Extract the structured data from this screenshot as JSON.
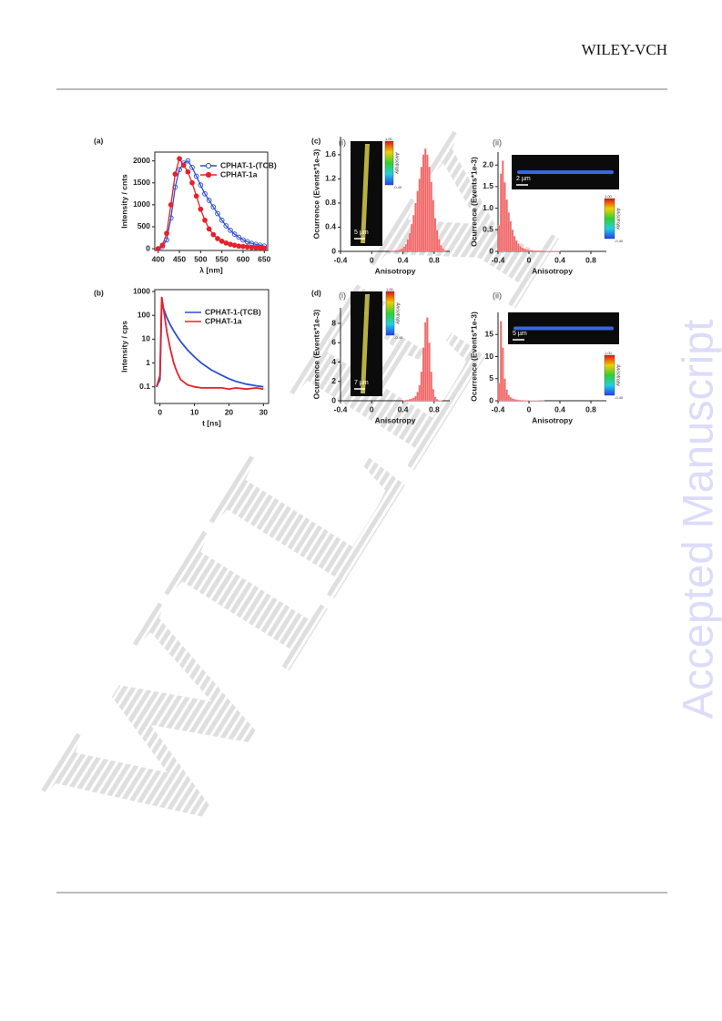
{
  "header": {
    "brand": "WILEY-VCH"
  },
  "watermark": {
    "side": "Accepted Manuscript",
    "diagonal": "WILEY"
  },
  "chart_data": [
    {
      "type": "line",
      "panel": "(a)",
      "xlabel": "λ [nm]",
      "ylabel": "Intensity / cnts",
      "x": [
        400,
        410,
        420,
        430,
        440,
        450,
        460,
        470,
        480,
        490,
        500,
        510,
        520,
        530,
        540,
        550,
        560,
        570,
        580,
        590,
        600,
        610,
        620,
        630,
        640,
        650
      ],
      "series": [
        {
          "name": "CPHAT-1-(TCB)",
          "color": "#2a4fd0",
          "marker": "open-circle",
          "values": [
            0,
            50,
            200,
            700,
            1400,
            1800,
            1950,
            2000,
            1850,
            1650,
            1450,
            1250,
            1100,
            950,
            800,
            650,
            520,
            420,
            330,
            260,
            200,
            160,
            120,
            100,
            80,
            60
          ]
        },
        {
          "name": "CPHAT-1a",
          "color": "#e8202a",
          "marker": "filled-circle",
          "values": [
            0,
            80,
            350,
            1000,
            1700,
            2050,
            1900,
            1750,
            1500,
            1200,
            900,
            650,
            450,
            320,
            230,
            170,
            130,
            100,
            80,
            60,
            50,
            40,
            30,
            25,
            20,
            15
          ]
        }
      ],
      "xlim": [
        392,
        658
      ],
      "xticks": [
        400,
        450,
        500,
        550,
        600,
        650
      ],
      "ylim": [
        -40,
        2200
      ],
      "yticks": [
        0,
        500,
        1000,
        1500,
        2000
      ],
      "legend": "upper right"
    },
    {
      "type": "line",
      "panel": "(b)",
      "xlabel": "t [ns]",
      "ylabel": "Intensity / cps",
      "log_y": true,
      "x": [
        -1,
        0,
        0.5,
        1,
        2,
        3,
        4,
        5,
        6,
        8,
        10,
        12,
        15,
        18,
        20,
        22,
        25,
        28,
        30
      ],
      "series": [
        {
          "name": "CPHAT-1-(TCB)",
          "color": "#2a4fd0",
          "values": [
            0.1,
            0.2,
            300,
            200,
            80,
            40,
            22,
            13,
            8,
            3.5,
            1.8,
            1,
            0.5,
            0.3,
            0.22,
            0.17,
            0.13,
            0.11,
            0.1
          ]
        },
        {
          "name": "CPHAT-1a",
          "color": "#e8202a",
          "values": [
            0.1,
            0.3,
            600,
            200,
            20,
            4,
            1,
            0.4,
            0.2,
            0.12,
            0.1,
            0.09,
            0.09,
            0.09,
            0.08,
            0.09,
            0.08,
            0.09,
            0.08
          ]
        }
      ],
      "xlim": [
        -1.5,
        31.5
      ],
      "xticks": [
        0,
        10,
        20,
        30
      ],
      "ylim": [
        0.02,
        1200
      ],
      "yticks": [
        0.1,
        1,
        10,
        100,
        1000
      ],
      "legend": "upper right"
    },
    {
      "type": "histogram",
      "panel": "(c)",
      "subpanel": "(i)",
      "color": "#f06a6a",
      "xlabel": "Anisotropy",
      "ylabel": "Ocurrence (Events*1e-3)",
      "bins": [
        0.2,
        0.225,
        0.25,
        0.275,
        0.3,
        0.325,
        0.35,
        0.375,
        0.4,
        0.425,
        0.45,
        0.475,
        0.5,
        0.525,
        0.55,
        0.575,
        0.6,
        0.625,
        0.65,
        0.675,
        0.7,
        0.725,
        0.75,
        0.775,
        0.8,
        0.825,
        0.85,
        0.875,
        0.9,
        0.925,
        0.95
      ],
      "counts": [
        0,
        0.01,
        0.01,
        0.01,
        0.02,
        0.02,
        0.03,
        0.05,
        0.08,
        0.12,
        0.2,
        0.3,
        0.45,
        0.6,
        0.8,
        1.0,
        1.2,
        1.4,
        1.6,
        1.7,
        1.6,
        1.4,
        1.15,
        0.85,
        0.55,
        0.35,
        0.2,
        0.1,
        0.05,
        0.02
      ],
      "xlim": [
        -0.4,
        1.0
      ],
      "xticks": [
        -0.4,
        0,
        0.4,
        0.8
      ],
      "ylim": [
        0,
        1.9
      ],
      "yticks": [
        0,
        0.4,
        0.8,
        1.2,
        1.6
      ],
      "inset": {
        "scale_bar": "5 µm",
        "colorbar_max": "1.00",
        "colorbar_min": "-0.40",
        "colorbar_label": "Anisotropy"
      }
    },
    {
      "type": "histogram",
      "subpanel": "(ii)",
      "color": "#f06a6a",
      "xlabel": "Anisotropy",
      "ylabel": "Ocurrence (Events*1e-3)",
      "bins": [
        -0.4,
        -0.375,
        -0.35,
        -0.325,
        -0.3,
        -0.275,
        -0.25,
        -0.225,
        -0.2,
        -0.175,
        -0.15,
        -0.125,
        -0.1,
        -0.075,
        -0.05,
        -0.025,
        0,
        0.025,
        0.05,
        0.075,
        0.1,
        0.125,
        0.15,
        0.175,
        0.2,
        0.225,
        0.25,
        0.275,
        0.3,
        0.325,
        0.35,
        0.375,
        0.4
      ],
      "counts": [
        0.6,
        1.8,
        2.1,
        1.6,
        1.2,
        0.9,
        0.7,
        0.5,
        0.35,
        0.25,
        0.18,
        0.12,
        0.09,
        0.07,
        0.05,
        0.04,
        0.03,
        0.03,
        0.02,
        0.02,
        0.02,
        0.02,
        0.015,
        0.015,
        0.01,
        0.01,
        0.01,
        0.01,
        0.01,
        0.01,
        0.01,
        0.01
      ],
      "xlim": [
        -0.4,
        1.0
      ],
      "xticks": [
        -0.4,
        0,
        0.4,
        0.8
      ],
      "ylim": [
        0,
        2.3
      ],
      "yticks": [
        0,
        0.5,
        {
          "value": 1,
          "label": "1.0"
        },
        1.5,
        {
          "value": 2,
          "label": "2.0"
        }
      ],
      "inset": {
        "scale_bar": "2 µm",
        "colorbar_max": "1.00",
        "colorbar_min": "-0.40",
        "colorbar_label": "Anisotropy"
      }
    },
    {
      "type": "histogram",
      "panel": "(d)",
      "subpanel": "(i)",
      "color": "#f06a6a",
      "xlabel": "Anisotropy",
      "ylabel": "Ocurrence (Events*1e-3)",
      "bins": [
        0.4,
        0.425,
        0.45,
        0.475,
        0.5,
        0.525,
        0.55,
        0.575,
        0.6,
        0.625,
        0.65,
        0.675,
        0.7,
        0.725,
        0.75,
        0.775,
        0.8,
        0.825,
        0.85,
        0.875,
        0.9
      ],
      "counts": [
        0.05,
        0.08,
        0.1,
        0.15,
        0.2,
        0.3,
        0.5,
        0.9,
        1.6,
        3.0,
        5.5,
        8.1,
        8.6,
        6.0,
        3.0,
        1.2,
        0.4,
        0.15,
        0.05,
        0.02
      ],
      "xlim": [
        -0.4,
        1.0
      ],
      "xticks": [
        -0.4,
        0,
        0.4,
        0.8
      ],
      "ylim": [
        0,
        9.6
      ],
      "yticks": [
        0,
        2,
        4,
        6,
        8
      ],
      "inset": {
        "scale_bar": "7 µm",
        "colorbar_max": "1.00",
        "colorbar_min": "-0.40",
        "colorbar_label": "Anisotropy"
      }
    },
    {
      "type": "histogram",
      "subpanel": "(ii)",
      "color": "#f06a6a",
      "xlabel": "Anisotropy",
      "ylabel": "Ocurrence (Events*1e-3)",
      "bins": [
        -0.4,
        -0.375,
        -0.35,
        -0.325,
        -0.3,
        -0.275,
        -0.25,
        -0.225,
        -0.2,
        -0.175,
        -0.15,
        -0.125,
        -0.1,
        -0.075,
        -0.05,
        -0.025,
        0,
        0.025,
        0.05,
        0.075,
        0.1,
        0.125,
        0.15,
        0.175,
        0.2
      ],
      "counts": [
        4,
        18,
        12,
        5,
        2.5,
        1.3,
        0.8,
        0.5,
        0.35,
        0.25,
        0.2,
        0.15,
        0.12,
        0.1,
        0.08,
        0.07,
        0.06,
        0.05,
        0.05,
        0.04,
        0.04,
        0.03,
        0.03,
        0.03
      ],
      "xlim": [
        -0.4,
        1.0
      ],
      "xticks": [
        -0.4,
        0,
        0.4,
        0.8
      ],
      "ylim": [
        0,
        20
      ],
      "yticks": [
        0,
        5,
        10,
        15
      ],
      "inset": {
        "scale_bar": "5 µm",
        "colorbar_max": "1.00",
        "colorbar_min": "-0.40",
        "colorbar_label": "Anisotropy"
      }
    }
  ]
}
